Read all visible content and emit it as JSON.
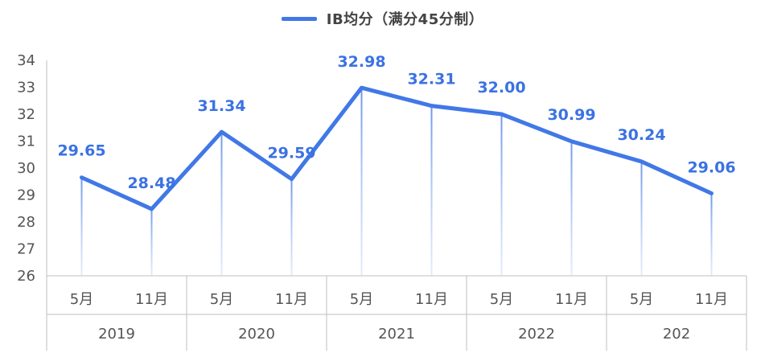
{
  "chart_data": {
    "type": "line",
    "title": "",
    "legend": {
      "position": "top-center",
      "entries": [
        "IB均分（满分45分制）"
      ]
    },
    "categories": [
      "5月",
      "11月",
      "5月",
      "11月",
      "5月",
      "11月",
      "5月",
      "11月",
      "5月",
      "11月"
    ],
    "groups": [
      "2019",
      "2020",
      "2021",
      "2022",
      "202"
    ],
    "series": [
      {
        "name": "IB均分（满分45分制）",
        "values": [
          29.65,
          28.48,
          31.34,
          29.59,
          32.98,
          32.31,
          32.0,
          30.99,
          30.24,
          29.06
        ],
        "labels": [
          "29.65",
          "28.48",
          "31.34",
          "29.59",
          "32.98",
          "32.31",
          "32.00",
          "30.99",
          "30.24",
          "29.06"
        ]
      }
    ],
    "ylim": [
      26,
      34
    ],
    "yticks": [
      26,
      27,
      28,
      29,
      30,
      31,
      32,
      33,
      34
    ],
    "xlabel": "",
    "ylabel": "",
    "grid": false,
    "colors": {
      "line": "#4178e6",
      "label": "#3b72e3",
      "drop": "#7fa6ef",
      "axis": "#bfbfbf"
    }
  }
}
